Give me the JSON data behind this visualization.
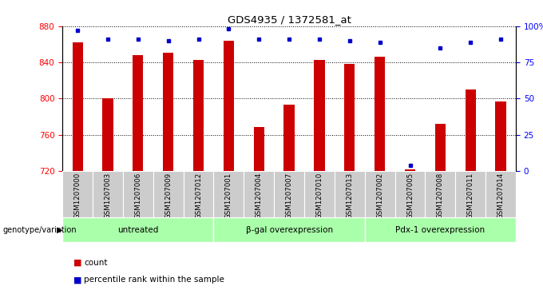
{
  "title": "GDS4935 / 1372581_at",
  "samples": [
    "GSM1207000",
    "GSM1207003",
    "GSM1207006",
    "GSM1207009",
    "GSM1207012",
    "GSM1207001",
    "GSM1207004",
    "GSM1207007",
    "GSM1207010",
    "GSM1207013",
    "GSM1207002",
    "GSM1207005",
    "GSM1207008",
    "GSM1207011",
    "GSM1207014"
  ],
  "counts": [
    862,
    800,
    848,
    851,
    843,
    864,
    769,
    793,
    843,
    838,
    846,
    722,
    772,
    810,
    797
  ],
  "percentiles": [
    97,
    91,
    91,
    90,
    91,
    98,
    91,
    91,
    91,
    90,
    89,
    4,
    85,
    89,
    91
  ],
  "groups": [
    {
      "label": "untreated",
      "start": 0,
      "end": 5
    },
    {
      "label": "β-gal overexpression",
      "start": 5,
      "end": 10
    },
    {
      "label": "Pdx-1 overexpression",
      "start": 10,
      "end": 15
    }
  ],
  "ylim_left": [
    720,
    880
  ],
  "ylim_right": [
    0,
    100
  ],
  "yticks_left": [
    720,
    760,
    800,
    840,
    880
  ],
  "yticks_right": [
    0,
    25,
    50,
    75,
    100
  ],
  "ytick_labels_right": [
    "0",
    "25",
    "50",
    "75",
    "100%"
  ],
  "bar_color": "#cc0000",
  "dot_color": "#0000cc",
  "bar_width": 0.35,
  "group_bg_color": "#aaffaa",
  "sample_bg_color": "#cccccc",
  "grid_color": "#000000",
  "legend_items": [
    {
      "label": "count",
      "color": "#cc0000"
    },
    {
      "label": "percentile rank within the sample",
      "color": "#0000cc"
    }
  ]
}
